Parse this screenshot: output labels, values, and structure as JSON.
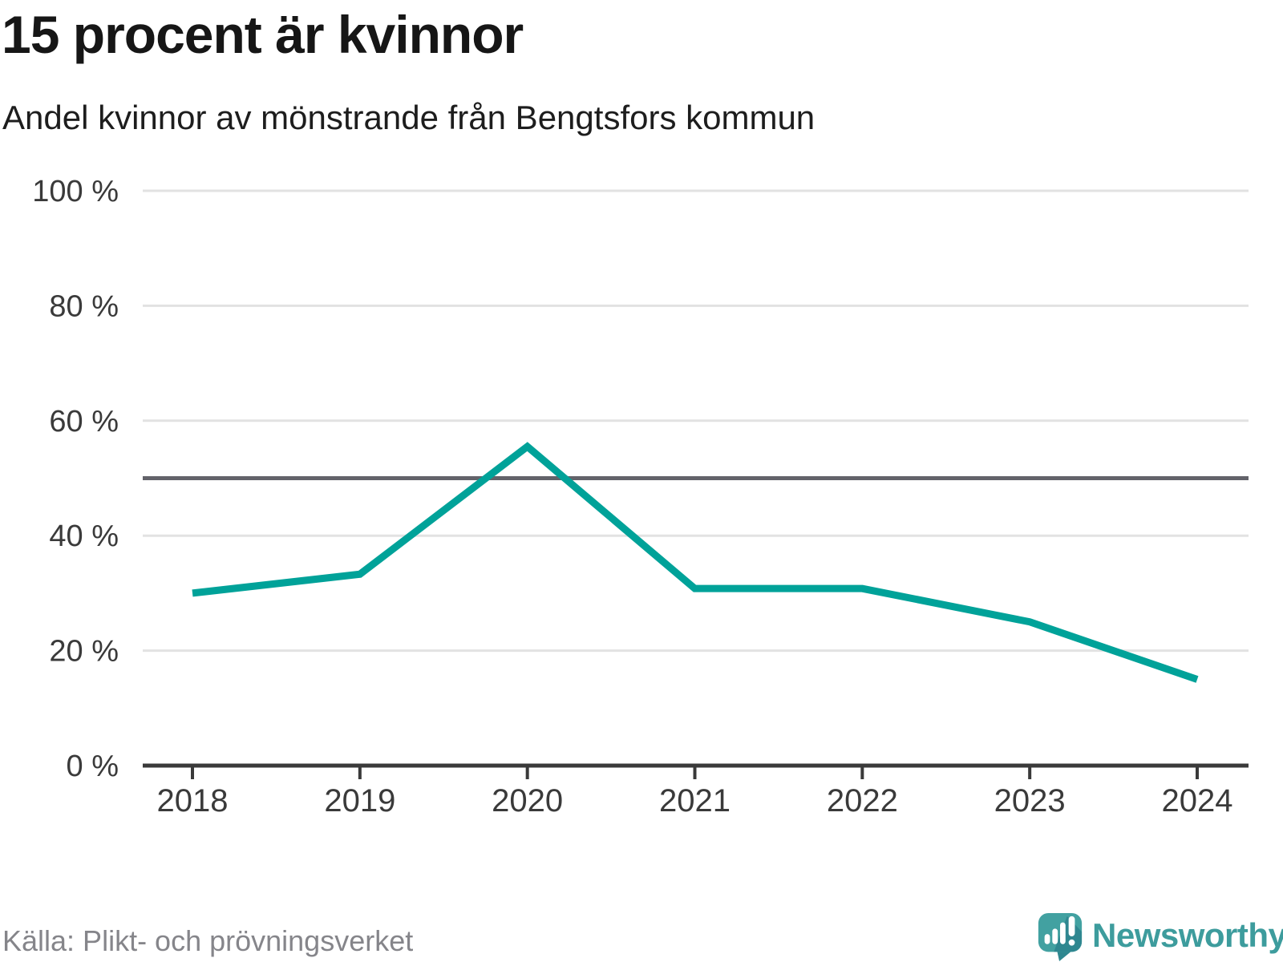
{
  "header": {
    "title": "15 procent är kvinnor",
    "subtitle": "Andel kvinnor av mönstrande från Bengtsfors kommun"
  },
  "chart_data": {
    "type": "line",
    "title": "15 procent är kvinnor",
    "subtitle": "Andel kvinnor av mönstrande från Bengtsfors kommun",
    "x": [
      2018,
      2019,
      2020,
      2021,
      2022,
      2023,
      2024
    ],
    "values": [
      30,
      33.3,
      55.5,
      30.8,
      30.8,
      25,
      15
    ],
    "unit": "%",
    "ylim": [
      0,
      100
    ],
    "yticks": [
      0,
      20,
      40,
      60,
      80,
      100
    ],
    "ytick_labels": [
      "0 %",
      "20 %",
      "40 %",
      "60 %",
      "80 %",
      "100 %"
    ],
    "reference_line": 50,
    "grid": true,
    "legend": "none",
    "source": "Källa: Plikt- och prövningsverket"
  },
  "footer": {
    "source": "Källa: Plikt- och prövningsverket",
    "brand": "Newsworthy"
  },
  "colors": {
    "line": "#00a299",
    "grid": "#e2e2e2",
    "reference": "#63636a",
    "axis": "#3a3a3a",
    "text": "#3a3a3a",
    "muted": "#85858a",
    "brand": "#3d9c9d",
    "brand_icon": "#42a1a1",
    "brand_icon_shade": "#2f8790"
  }
}
